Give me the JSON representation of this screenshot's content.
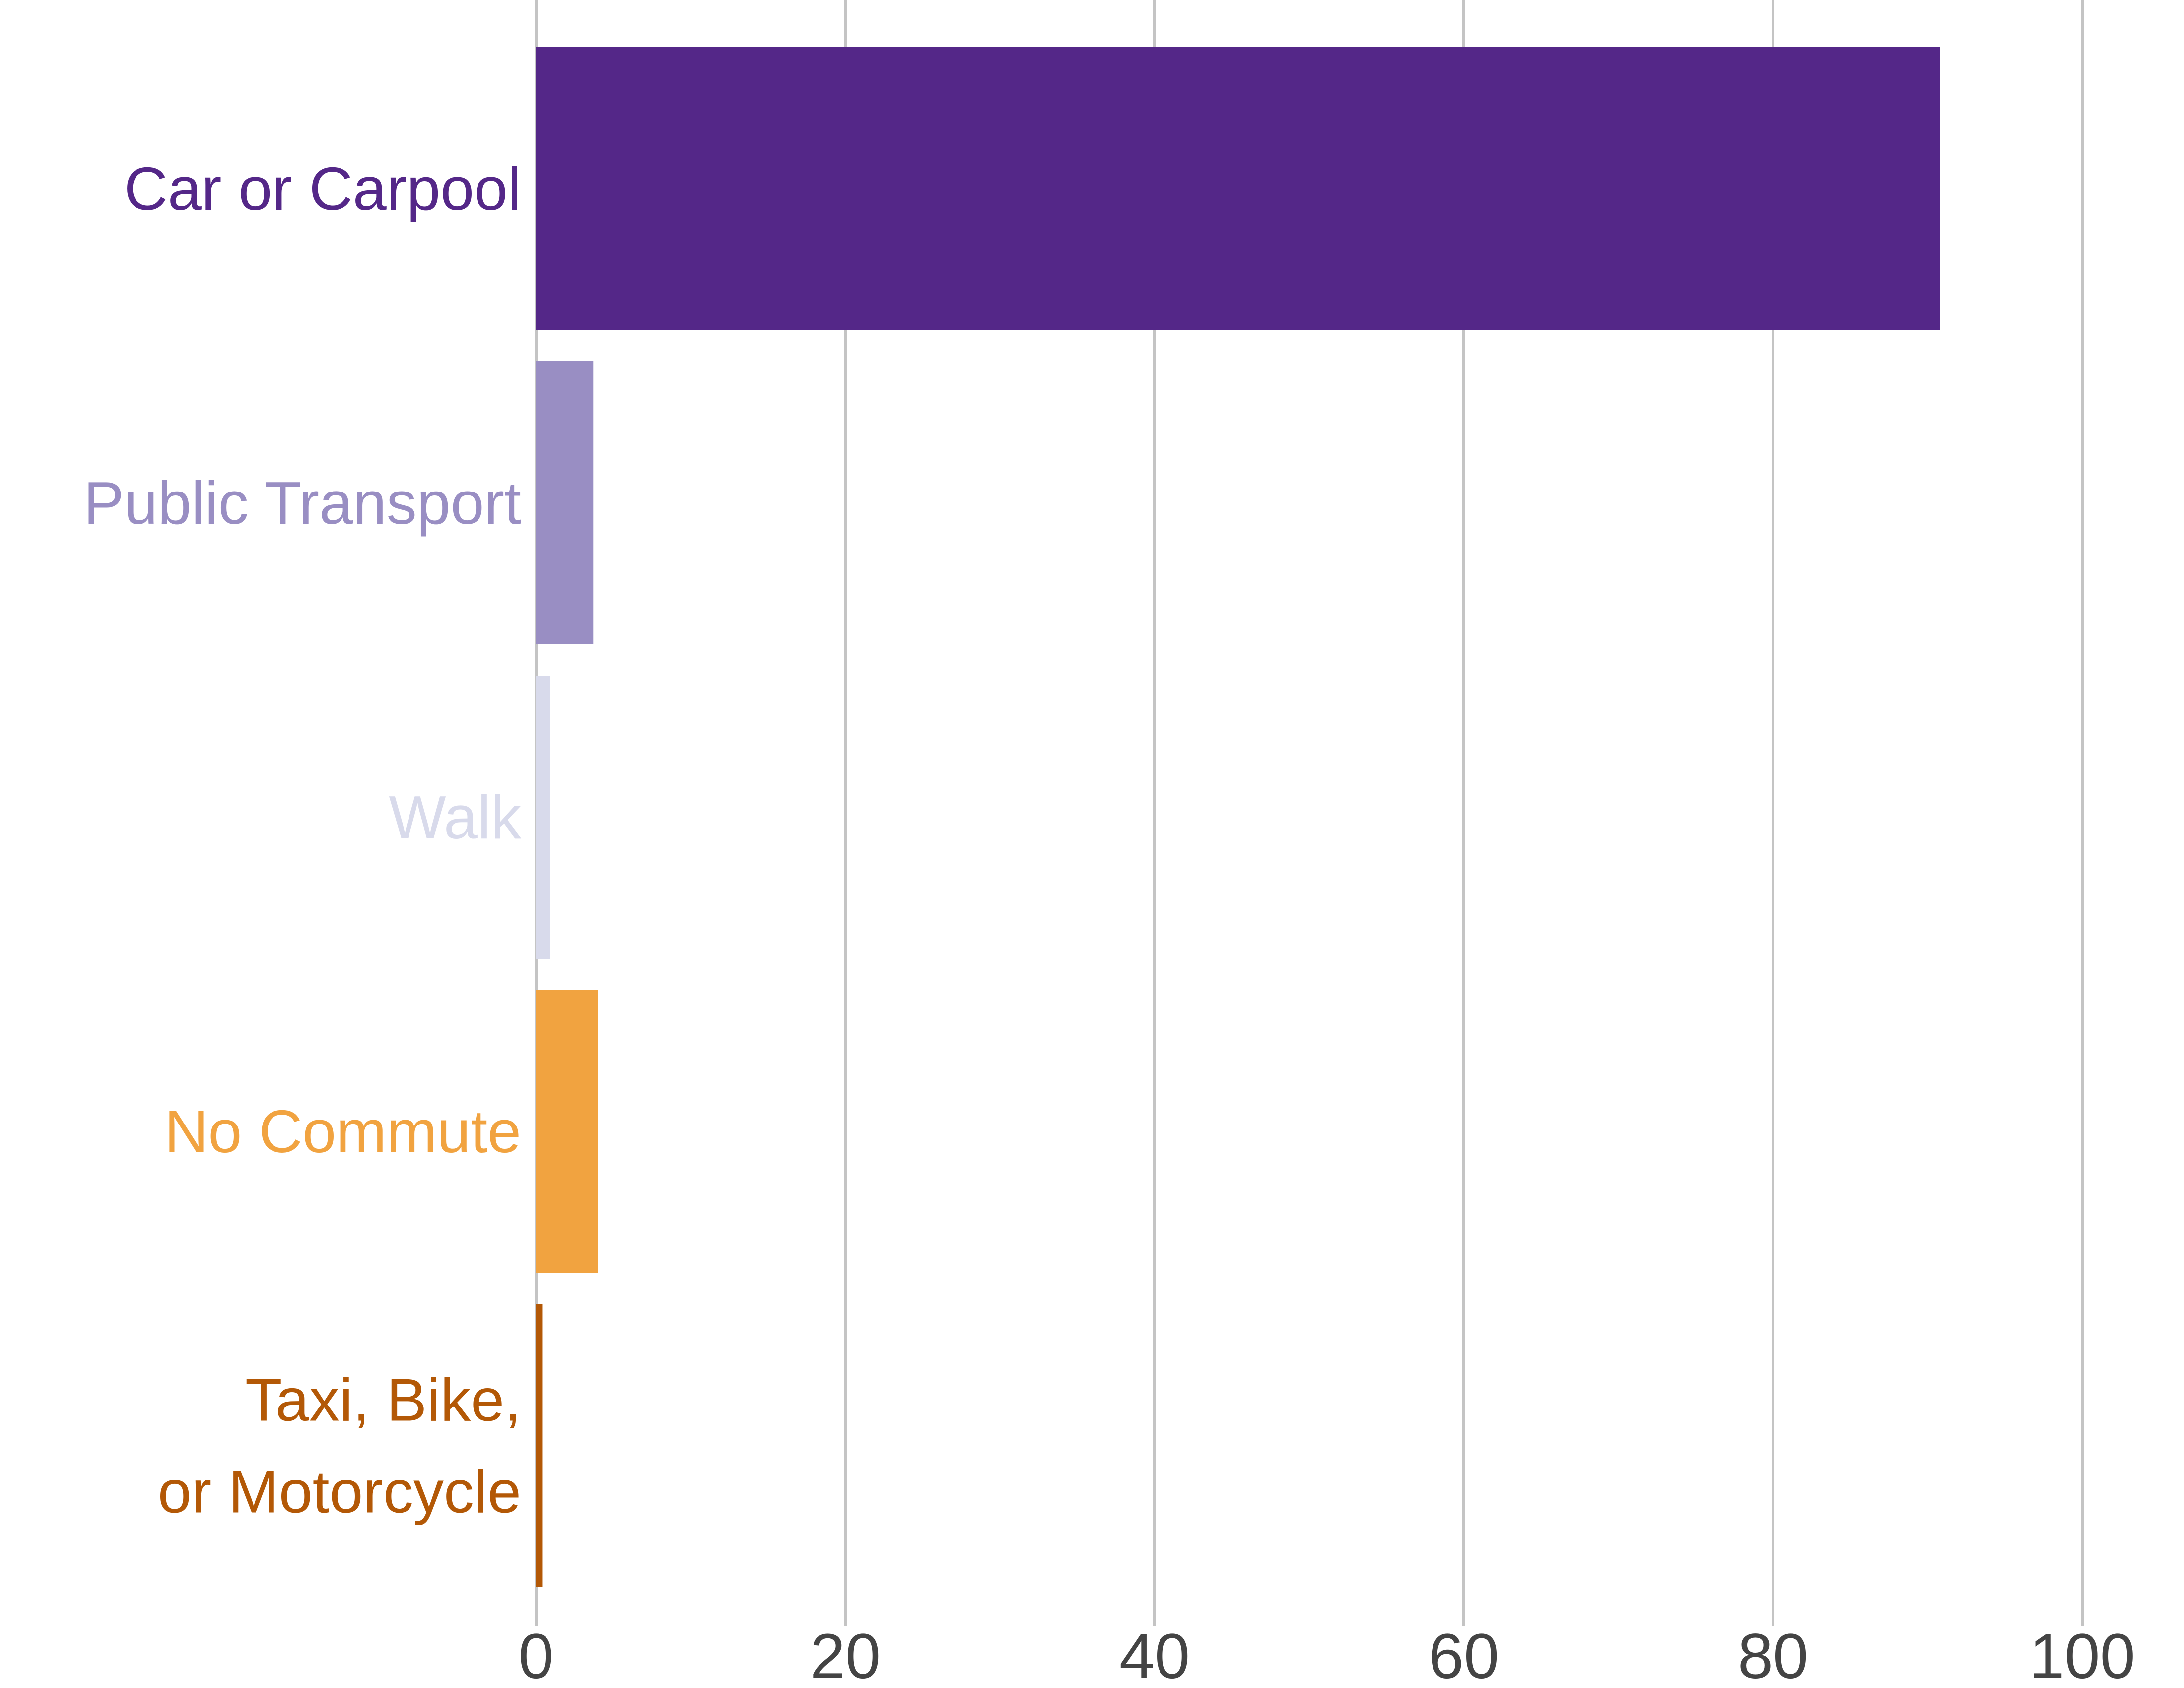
{
  "chart_data": {
    "type": "bar",
    "orientation": "horizontal",
    "title": "",
    "xlabel": "",
    "ylabel": "",
    "xlim": [
      0,
      100
    ],
    "xticks": [
      0,
      20,
      40,
      60,
      80,
      100
    ],
    "xtick_labels": [
      "0",
      "20",
      "40",
      "60",
      "80",
      "100"
    ],
    "grid": "vertical",
    "categories": [
      {
        "label_lines": [
          "Car or Carpool"
        ],
        "value": 90.8,
        "color": "#542788"
      },
      {
        "label_lines": [
          "Public Transport"
        ],
        "value": 3.7,
        "color": "#998ec3"
      },
      {
        "label_lines": [
          "Walk"
        ],
        "value": 0.9,
        "color": "#d8daeb"
      },
      {
        "label_lines": [
          "No Commute"
        ],
        "value": 4.0,
        "color": "#f1a340"
      },
      {
        "label_lines": [
          "Taxi, Bike,",
          "or Motorcycle"
        ],
        "value": 0.4,
        "color": "#b35806"
      }
    ]
  }
}
